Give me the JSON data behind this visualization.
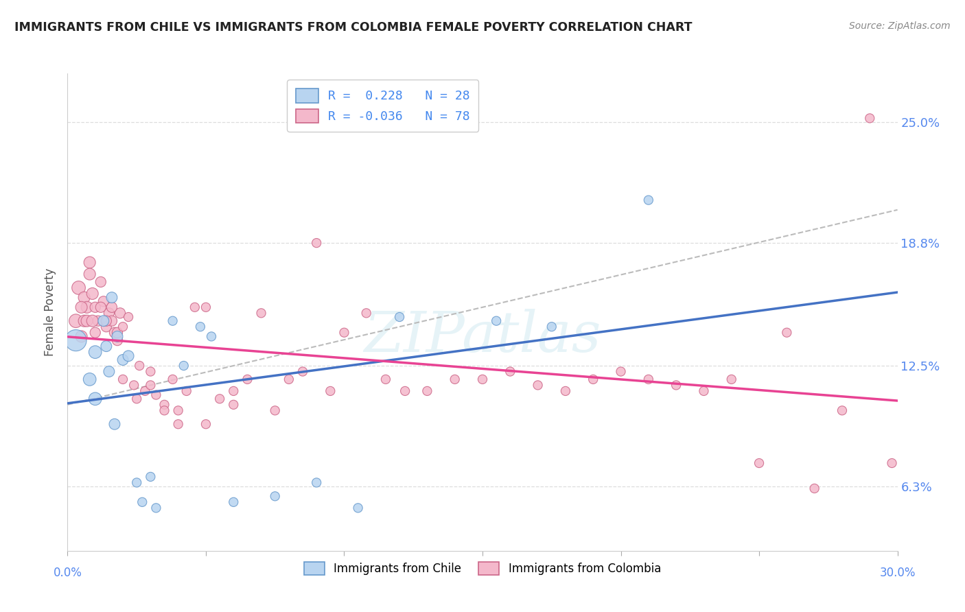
{
  "title": "IMMIGRANTS FROM CHILE VS IMMIGRANTS FROM COLOMBIA FEMALE POVERTY CORRELATION CHART",
  "source": "Source: ZipAtlas.com",
  "ylabel": "Female Poverty",
  "ytick_labels": [
    "6.3%",
    "12.5%",
    "18.8%",
    "25.0%"
  ],
  "ytick_values": [
    0.063,
    0.125,
    0.188,
    0.25
  ],
  "xlim": [
    0.0,
    0.3
  ],
  "ylim": [
    0.03,
    0.275
  ],
  "chile_color": "#b8d4f0",
  "colombia_color": "#f4b8cb",
  "chile_edge_color": "#6699cc",
  "colombia_edge_color": "#cc6688",
  "chile_line_color": "#4472c4",
  "colombia_line_color": "#e84393",
  "trendline_dashed_color": "#bbbbbb",
  "background_color": "#ffffff",
  "grid_color": "#dddddd",
  "watermark": "ZIPatlas",
  "chile_R": "0.228",
  "chile_N": "28",
  "colombia_R": "-0.036",
  "colombia_N": "78",
  "chile_points_x": [
    0.003,
    0.008,
    0.01,
    0.01,
    0.013,
    0.014,
    0.015,
    0.016,
    0.017,
    0.018,
    0.02,
    0.022,
    0.025,
    0.027,
    0.03,
    0.032,
    0.038,
    0.042,
    0.048,
    0.052,
    0.06,
    0.075,
    0.09,
    0.105,
    0.12,
    0.155,
    0.175,
    0.21
  ],
  "chile_points_y": [
    0.138,
    0.118,
    0.108,
    0.132,
    0.148,
    0.135,
    0.122,
    0.16,
    0.095,
    0.14,
    0.128,
    0.13,
    0.065,
    0.055,
    0.068,
    0.052,
    0.148,
    0.125,
    0.145,
    0.14,
    0.055,
    0.058,
    0.065,
    0.052,
    0.15,
    0.148,
    0.145,
    0.21
  ],
  "colombia_points_x": [
    0.003,
    0.004,
    0.005,
    0.006,
    0.007,
    0.008,
    0.009,
    0.01,
    0.011,
    0.012,
    0.013,
    0.014,
    0.015,
    0.016,
    0.017,
    0.018,
    0.019,
    0.02,
    0.022,
    0.024,
    0.026,
    0.028,
    0.03,
    0.032,
    0.035,
    0.038,
    0.04,
    0.043,
    0.046,
    0.05,
    0.055,
    0.06,
    0.065,
    0.07,
    0.075,
    0.08,
    0.085,
    0.09,
    0.095,
    0.1,
    0.108,
    0.115,
    0.122,
    0.13,
    0.14,
    0.15,
    0.16,
    0.17,
    0.18,
    0.19,
    0.2,
    0.21,
    0.22,
    0.23,
    0.24,
    0.25,
    0.26,
    0.27,
    0.005,
    0.006,
    0.007,
    0.008,
    0.009,
    0.01,
    0.012,
    0.014,
    0.016,
    0.018,
    0.02,
    0.025,
    0.03,
    0.035,
    0.04,
    0.05,
    0.06,
    0.28,
    0.29,
    0.298
  ],
  "colombia_points_y": [
    0.148,
    0.165,
    0.14,
    0.16,
    0.155,
    0.178,
    0.162,
    0.155,
    0.148,
    0.168,
    0.158,
    0.145,
    0.152,
    0.148,
    0.142,
    0.138,
    0.152,
    0.118,
    0.15,
    0.115,
    0.125,
    0.112,
    0.122,
    0.11,
    0.105,
    0.118,
    0.102,
    0.112,
    0.155,
    0.155,
    0.108,
    0.112,
    0.118,
    0.152,
    0.102,
    0.118,
    0.122,
    0.188,
    0.112,
    0.142,
    0.152,
    0.118,
    0.112,
    0.112,
    0.118,
    0.118,
    0.122,
    0.115,
    0.112,
    0.118,
    0.122,
    0.118,
    0.115,
    0.112,
    0.118,
    0.075,
    0.142,
    0.062,
    0.155,
    0.148,
    0.148,
    0.172,
    0.148,
    0.142,
    0.155,
    0.148,
    0.155,
    0.142,
    0.145,
    0.108,
    0.115,
    0.102,
    0.095,
    0.095,
    0.105,
    0.102,
    0.252,
    0.075
  ]
}
